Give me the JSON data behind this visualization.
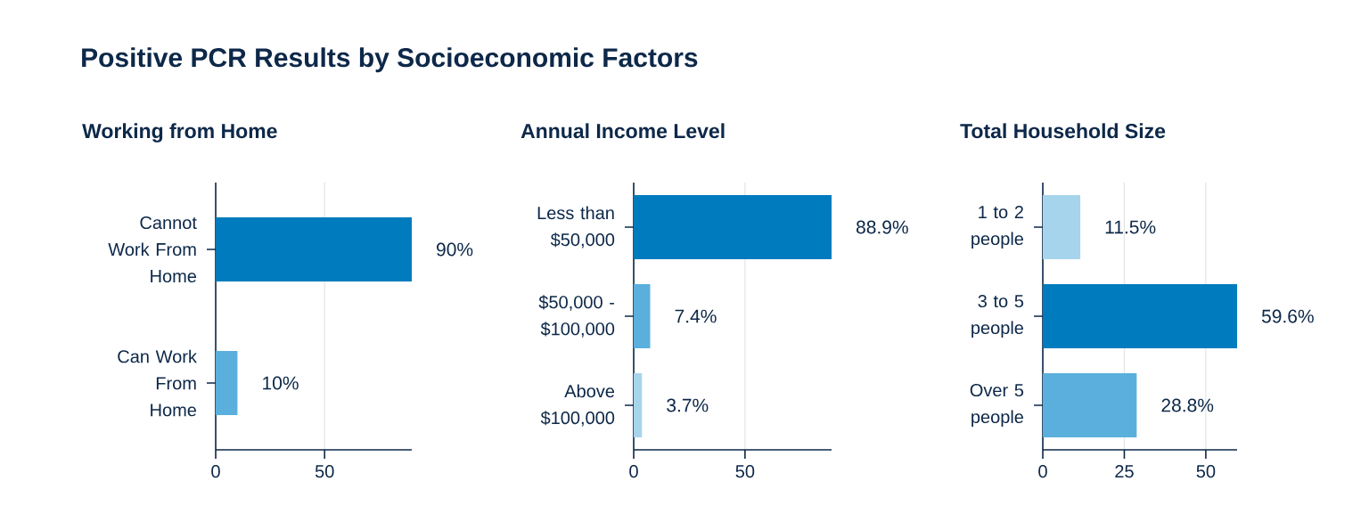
{
  "chart_data": [
    {
      "type": "bar",
      "orientation": "horizontal",
      "title": "Working from Home",
      "annotations": [
        "Positive PCR Results by Socioeconomic Factors"
      ],
      "categories": [
        "Cannot Work From Home",
        "Can Work From Home"
      ],
      "values": [
        90,
        10
      ],
      "colors": [
        "#007bbd",
        "#5aafdc"
      ],
      "value_labels": [
        "90%",
        "10%"
      ],
      "xlim": [
        0,
        90
      ],
      "xticks": [
        0,
        50
      ],
      "grid": "x"
    },
    {
      "type": "bar",
      "orientation": "horizontal",
      "title": "Annual Income Level",
      "categories": [
        "Less than $50,000",
        "$50,000 - $100,000",
        "Above $100,000"
      ],
      "values": [
        88.9,
        7.4,
        3.7
      ],
      "colors": [
        "#007bbd",
        "#5aafdc",
        "#a6d4ec"
      ],
      "value_labels": [
        "88.9%",
        "7.4%",
        "3.7%"
      ],
      "xlim": [
        0,
        88.9
      ],
      "xticks": [
        0,
        50
      ],
      "grid": "x"
    },
    {
      "type": "bar",
      "orientation": "horizontal",
      "title": "Total Household Size",
      "categories": [
        "1 to 2 people",
        "3 to 5 people",
        "Over 5 people"
      ],
      "values": [
        11.5,
        59.6,
        28.8
      ],
      "colors": [
        "#a6d4ec",
        "#007bbd",
        "#5aafdc"
      ],
      "value_labels": [
        "11.5%",
        "59.6%",
        "28.8%"
      ],
      "xlim": [
        0,
        59.6
      ],
      "xticks": [
        0,
        25,
        50
      ],
      "grid": "x"
    }
  ]
}
